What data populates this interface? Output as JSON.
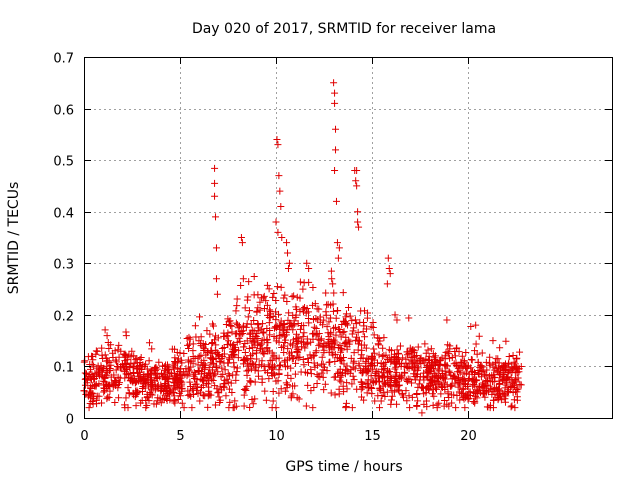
{
  "chart_data": {
    "type": "scatter",
    "title": "Day 020 of 2017, SRMTID for receiver lama",
    "xlabel": "GPS time / hours",
    "ylabel": "SRMTID / TECUs",
    "xlim": [
      0,
      27.5
    ],
    "ylim": [
      0,
      0.7
    ],
    "x_ticks": [
      0,
      5,
      10,
      15,
      20
    ],
    "x_tick_labels": [
      "0",
      "5",
      "10",
      "15",
      "20"
    ],
    "y_ticks": [
      0,
      0.1,
      0.2,
      0.3,
      0.4,
      0.5,
      0.6,
      0.7
    ],
    "y_tick_labels": [
      "0",
      "0.1",
      "0.2",
      "0.3",
      "0.4",
      "0.5",
      "0.6",
      "0.7"
    ],
    "grid": true,
    "marker": "plus",
    "series": [
      {
        "name": "SRMTID",
        "color": "#e00000",
        "points": [
          [
            6.8,
            0.484
          ],
          [
            6.8,
            0.455
          ],
          [
            6.8,
            0.43
          ],
          [
            6.85,
            0.39
          ],
          [
            6.9,
            0.33
          ],
          [
            6.9,
            0.27
          ],
          [
            6.95,
            0.24
          ],
          [
            8.2,
            0.35
          ],
          [
            8.25,
            0.34
          ],
          [
            8.3,
            0.27
          ],
          [
            10.05,
            0.54
          ],
          [
            10.1,
            0.53
          ],
          [
            10.15,
            0.47
          ],
          [
            10.2,
            0.44
          ],
          [
            10.25,
            0.41
          ],
          [
            10.0,
            0.38
          ],
          [
            10.1,
            0.36
          ],
          [
            10.3,
            0.35
          ],
          [
            10.55,
            0.34
          ],
          [
            10.6,
            0.32
          ],
          [
            10.7,
            0.3
          ],
          [
            10.65,
            0.29
          ],
          [
            11.6,
            0.3
          ],
          [
            11.7,
            0.29
          ],
          [
            11.4,
            0.25
          ],
          [
            13.0,
            0.65
          ],
          [
            13.05,
            0.63
          ],
          [
            13.05,
            0.61
          ],
          [
            13.1,
            0.56
          ],
          [
            13.1,
            0.52
          ],
          [
            13.05,
            0.48
          ],
          [
            13.15,
            0.42
          ],
          [
            13.2,
            0.34
          ],
          [
            13.3,
            0.33
          ],
          [
            13.25,
            0.31
          ],
          [
            12.9,
            0.27
          ],
          [
            12.95,
            0.26
          ],
          [
            14.1,
            0.48
          ],
          [
            14.2,
            0.48
          ],
          [
            14.15,
            0.46
          ],
          [
            14.2,
            0.45
          ],
          [
            14.25,
            0.4
          ],
          [
            14.25,
            0.38
          ],
          [
            14.3,
            0.37
          ],
          [
            15.85,
            0.31
          ],
          [
            15.9,
            0.29
          ],
          [
            15.95,
            0.28
          ],
          [
            15.8,
            0.26
          ],
          [
            16.2,
            0.2
          ],
          [
            16.3,
            0.19
          ],
          [
            17.6,
            0.01
          ],
          [
            18.9,
            0.19
          ],
          [
            20.4,
            0.18
          ],
          [
            21.3,
            0.15
          ]
        ]
      }
    ],
    "background_cloud_trend": [
      [
        0,
        0.07
      ],
      [
        1,
        0.08
      ],
      [
        2,
        0.09
      ],
      [
        3,
        0.07
      ],
      [
        4,
        0.07
      ],
      [
        5,
        0.08
      ],
      [
        6,
        0.09
      ],
      [
        7,
        0.11
      ],
      [
        8,
        0.13
      ],
      [
        9,
        0.15
      ],
      [
        10,
        0.15
      ],
      [
        11,
        0.15
      ],
      [
        12,
        0.14
      ],
      [
        13,
        0.14
      ],
      [
        14,
        0.13
      ],
      [
        15,
        0.1
      ],
      [
        16,
        0.09
      ],
      [
        17,
        0.09
      ],
      [
        18,
        0.08
      ],
      [
        19,
        0.08
      ],
      [
        20,
        0.08
      ],
      [
        21,
        0.07
      ],
      [
        22,
        0.07
      ],
      [
        22.8,
        0.07
      ]
    ],
    "x_max_observed": 22.8
  }
}
